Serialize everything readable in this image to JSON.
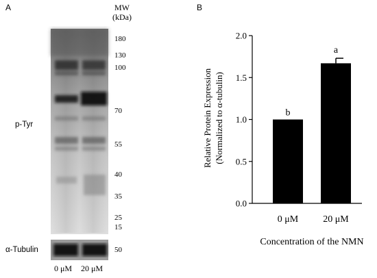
{
  "panel_a": {
    "letter": "A",
    "mw_title_line1": "MW",
    "mw_title_line2": "(kDa)",
    "markers": [
      "180",
      "130",
      "100",
      "70",
      "55",
      "40",
      "35",
      "25",
      "15"
    ],
    "loading_marker": "50",
    "row_labels": {
      "ptyr": "p-Tyr",
      "tubulin": "α-Tubulin"
    },
    "lanes": [
      "0 μM",
      "20 μM"
    ]
  },
  "panel_b": {
    "letter": "B"
  },
  "chart_data": {
    "type": "bar",
    "categories": [
      "0 μM",
      "20 μM"
    ],
    "values": [
      1.0,
      1.67
    ],
    "errors": [
      0,
      0.06
    ],
    "significance_letters": [
      "b",
      "a"
    ],
    "ylabel_line1": "Relative Protein Expression",
    "ylabel_line2": "(Normalized to α-tubulin)",
    "xlabel": "Concentration of the NMN",
    "ylim": [
      0,
      2.0
    ],
    "yticks": [
      "0.0",
      "0.5",
      "1.0",
      "1.5",
      "2.0"
    ],
    "bar_color": "#000000"
  }
}
